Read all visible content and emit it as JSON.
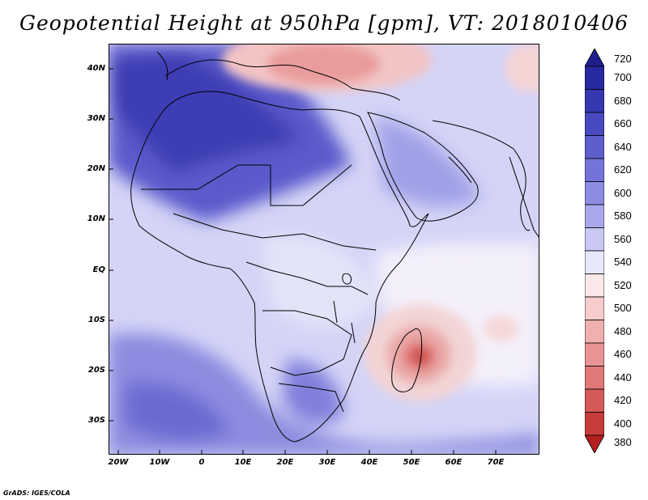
{
  "title": "Geopotential Height at 950hPa [gpm], VT: 2018010406",
  "footer": "GrADS: IGES/COLA",
  "lat_labels": [
    "40N",
    "30N",
    "20N",
    "10N",
    "EQ",
    "10S",
    "20S",
    "30S"
  ],
  "lon_labels": [
    "20W",
    "10W",
    "0",
    "10E",
    "20E",
    "30E",
    "40E",
    "50E",
    "60E",
    "70E"
  ],
  "colorbar": {
    "levels": [
      "720",
      "700",
      "680",
      "660",
      "640",
      "620",
      "600",
      "580",
      "560",
      "540",
      "520",
      "500",
      "480",
      "460",
      "440",
      "420",
      "400",
      "380"
    ],
    "colors": [
      "#1e1e8c",
      "#2828a0",
      "#3737b0",
      "#4a4ac0",
      "#5e5ecd",
      "#7474d8",
      "#8c8ce2",
      "#a8a8eb",
      "#c8c8f3",
      "#e8e8fb",
      "#fbe8e8",
      "#f6cccc",
      "#efb0b0",
      "#e89494",
      "#e07878",
      "#d65a5a",
      "#c83c3c",
      "#b41e1e"
    ]
  },
  "legend_units": "gpm"
}
